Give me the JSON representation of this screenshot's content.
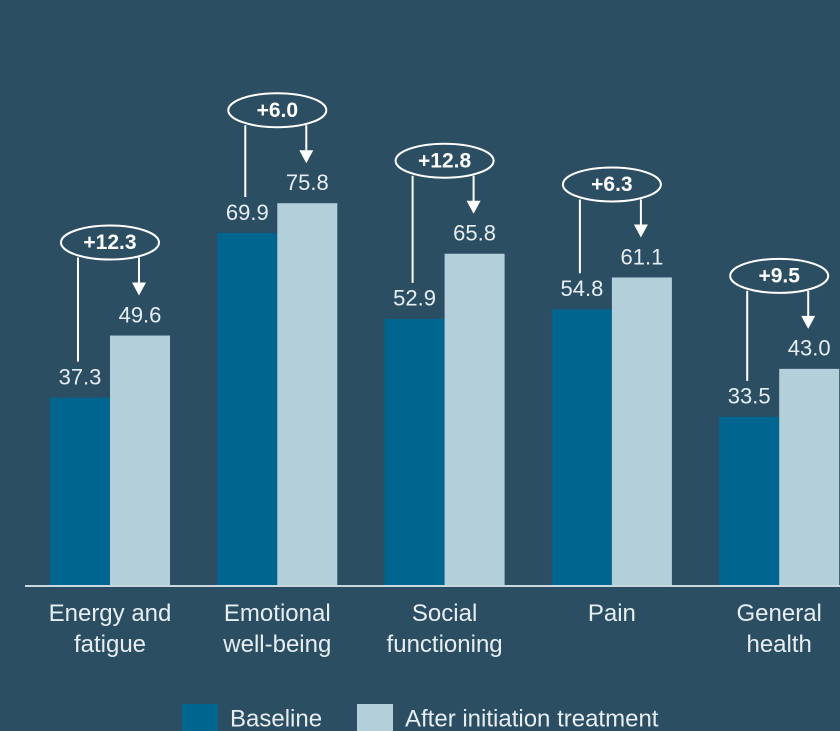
{
  "chart_data": {
    "type": "bar",
    "categories": [
      "Energy and\nfatigue",
      "Emotional\nwell-being",
      "Social\nfunctioning",
      "Pain",
      "General\nhealth"
    ],
    "series": [
      {
        "name": "Baseline",
        "color": "#00668f",
        "values": [
          37.3,
          69.9,
          52.9,
          54.8,
          33.5
        ],
        "value_labels": [
          "37.3",
          "69.9",
          "52.9",
          "54.8",
          "33.5"
        ]
      },
      {
        "name": "After initiation treatment",
        "color": "#b3cfd9",
        "values": [
          49.6,
          75.8,
          65.8,
          61.1,
          43.0
        ],
        "value_labels": [
          "49.6",
          "75.8",
          "65.8",
          "61.1",
          "43.0"
        ]
      }
    ],
    "annotations": [
      "+12.3",
      "+6.0",
      "+12.8",
      "+6.3",
      "+9.5"
    ],
    "legend": "bottom"
  }
}
